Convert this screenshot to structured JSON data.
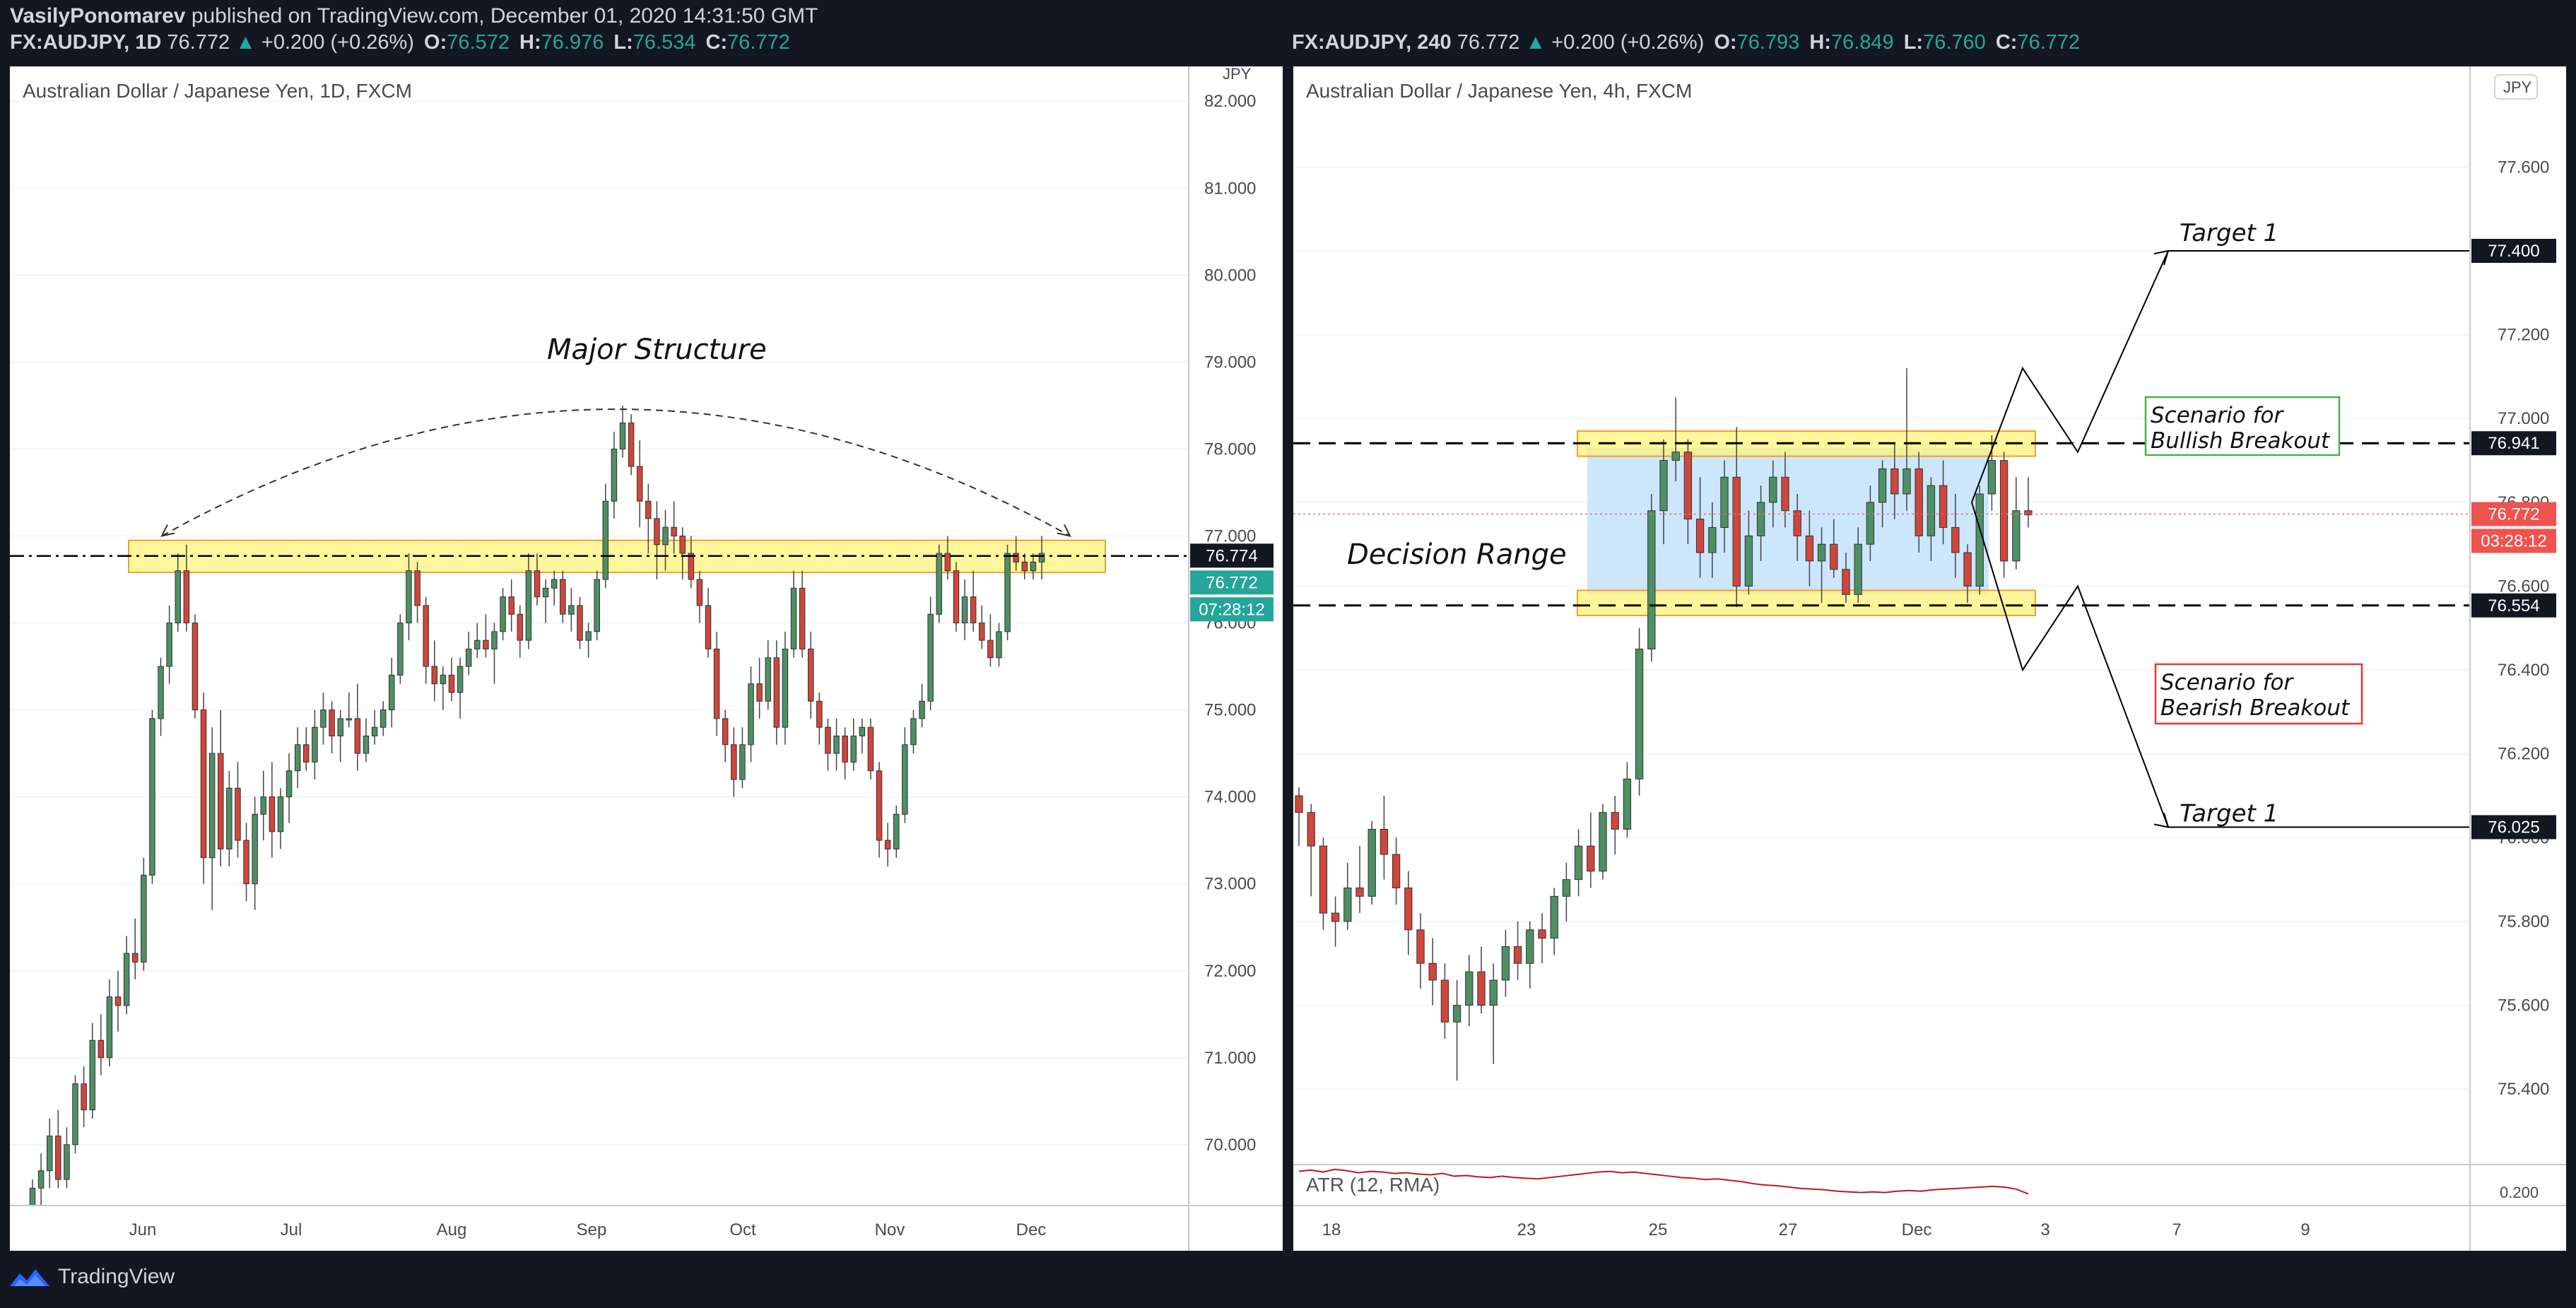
{
  "header": {
    "author": "VasilyPonomarev",
    "published_text": "published on TradingView.com, December 01, 2020 14:31:50 GMT"
  },
  "left_legend": {
    "symbol": "FX:AUDJPY, 1D",
    "price": "76.772",
    "arrow": "▲",
    "change": "+0.200 (+0.26%)",
    "o_label": "O:",
    "o": "76.572",
    "h_label": "H:",
    "h": "76.976",
    "l_label": "L:",
    "l": "76.534",
    "c_label": "C:",
    "c": "76.772"
  },
  "right_legend": {
    "symbol": "FX:AUDJPY, 240",
    "price": "76.772",
    "arrow": "▲",
    "change": "+0.200 (+0.26%)",
    "o_label": "O:",
    "o": "76.793",
    "h_label": "H:",
    "h": "76.849",
    "l_label": "L:",
    "l": "76.760",
    "c_label": "C:",
    "c": "76.772"
  },
  "footer": {
    "brand": "TradingView"
  },
  "colors": {
    "bull": "#26a69a",
    "bull_fill": "#4e8f64",
    "bear": "#d0463c",
    "zone": "#fff27a",
    "zone_border": "#f0a030",
    "range": "#bbdefb"
  },
  "chart_data": [
    {
      "type": "candlestick",
      "title": "Australian Dollar / Japanese Yen, 1D, FXCM",
      "currency": "JPY",
      "ylim": [
        69.3,
        82.4
      ],
      "y_ticks": [
        "82.000",
        "81.000",
        "80.000",
        "79.000",
        "78.000",
        "77.000",
        "76.000",
        "75.000",
        "74.000",
        "73.000",
        "72.000",
        "71.000",
        "70.000"
      ],
      "x_ticks": [
        "Jun",
        "Jul",
        "Aug",
        "Sep",
        "Oct",
        "Nov",
        "Dec"
      ],
      "price_badges": [
        "76.774",
        "76.772",
        "07:28:12"
      ],
      "annotations": [
        "Major Structure"
      ],
      "structure_zone": [
        76.58,
        76.95
      ],
      "structure_line": 76.77,
      "ohlc": [
        [
          69.3,
          69.6,
          69.3,
          69.5
        ],
        [
          69.5,
          69.9,
          69.3,
          69.7
        ],
        [
          69.7,
          70.3,
          69.5,
          70.1
        ],
        [
          70.1,
          70.4,
          69.5,
          69.6
        ],
        [
          69.6,
          70.2,
          69.5,
          70.0
        ],
        [
          70.0,
          70.8,
          69.9,
          70.7
        ],
        [
          70.7,
          70.9,
          70.2,
          70.4
        ],
        [
          70.4,
          71.4,
          70.3,
          71.2
        ],
        [
          71.2,
          71.5,
          70.8,
          71.0
        ],
        [
          71.0,
          71.9,
          70.9,
          71.7
        ],
        [
          71.7,
          72.0,
          71.3,
          71.6
        ],
        [
          71.6,
          72.4,
          71.5,
          72.2
        ],
        [
          72.2,
          72.6,
          71.9,
          72.1
        ],
        [
          72.1,
          73.3,
          72.0,
          73.1
        ],
        [
          73.1,
          75.0,
          73.0,
          74.9
        ],
        [
          74.9,
          75.6,
          74.7,
          75.5
        ],
        [
          75.5,
          76.2,
          75.3,
          76.0
        ],
        [
          76.0,
          76.8,
          75.9,
          76.6
        ],
        [
          76.6,
          76.9,
          75.9,
          76.0
        ],
        [
          76.0,
          76.1,
          74.9,
          75.0
        ],
        [
          75.0,
          75.2,
          73.0,
          73.3
        ],
        [
          73.3,
          74.8,
          72.7,
          74.5
        ],
        [
          74.5,
          75.0,
          73.2,
          73.4
        ],
        [
          73.4,
          74.3,
          73.2,
          74.1
        ],
        [
          74.1,
          74.4,
          73.3,
          73.5
        ],
        [
          73.5,
          73.7,
          72.8,
          73.0
        ],
        [
          73.0,
          74.0,
          72.7,
          73.8
        ],
        [
          73.8,
          74.3,
          73.5,
          74.0
        ],
        [
          74.0,
          74.4,
          73.3,
          73.6
        ],
        [
          73.6,
          74.1,
          73.4,
          74.0
        ],
        [
          74.0,
          74.5,
          73.7,
          74.3
        ],
        [
          74.3,
          74.8,
          74.1,
          74.6
        ],
        [
          74.6,
          74.8,
          74.3,
          74.4
        ],
        [
          74.4,
          75.0,
          74.2,
          74.8
        ],
        [
          74.8,
          75.2,
          74.6,
          75.0
        ],
        [
          75.0,
          75.1,
          74.5,
          74.7
        ],
        [
          74.7,
          75.0,
          74.4,
          74.9
        ],
        [
          74.9,
          75.2,
          74.8,
          74.9
        ],
        [
          74.9,
          75.3,
          74.3,
          74.5
        ],
        [
          74.5,
          74.9,
          74.4,
          74.7
        ],
        [
          74.7,
          75.0,
          74.6,
          74.8
        ],
        [
          74.8,
          75.1,
          74.7,
          75.0
        ],
        [
          75.0,
          75.6,
          74.8,
          75.4
        ],
        [
          75.4,
          76.1,
          75.3,
          76.0
        ],
        [
          76.0,
          76.8,
          75.8,
          76.6
        ],
        [
          76.6,
          76.7,
          76.0,
          76.2
        ],
        [
          76.2,
          76.3,
          75.3,
          75.5
        ],
        [
          75.5,
          75.8,
          75.1,
          75.3
        ],
        [
          75.3,
          75.5,
          75.0,
          75.4
        ],
        [
          75.4,
          75.6,
          75.1,
          75.2
        ],
        [
          75.2,
          75.6,
          74.9,
          75.5
        ],
        [
          75.5,
          75.9,
          75.4,
          75.7
        ],
        [
          75.7,
          76.0,
          75.6,
          75.8
        ],
        [
          75.8,
          76.1,
          75.6,
          75.7
        ],
        [
          75.7,
          76.0,
          75.3,
          75.9
        ],
        [
          75.9,
          76.4,
          75.8,
          76.3
        ],
        [
          76.3,
          76.5,
          75.9,
          76.1
        ],
        [
          76.1,
          76.2,
          75.6,
          75.8
        ],
        [
          75.8,
          76.8,
          75.7,
          76.6
        ],
        [
          76.6,
          76.8,
          76.2,
          76.3
        ],
        [
          76.3,
          76.5,
          76.0,
          76.4
        ],
        [
          76.4,
          76.6,
          76.2,
          76.5
        ],
        [
          76.5,
          76.6,
          76.0,
          76.1
        ],
        [
          76.1,
          76.4,
          75.9,
          76.2
        ],
        [
          76.2,
          76.3,
          75.7,
          75.8
        ],
        [
          75.8,
          76.0,
          75.6,
          75.9
        ],
        [
          75.9,
          76.6,
          75.8,
          76.5
        ],
        [
          76.5,
          77.6,
          76.4,
          77.4
        ],
        [
          77.4,
          78.2,
          77.2,
          78.0
        ],
        [
          78.0,
          78.5,
          77.9,
          78.3
        ],
        [
          78.3,
          78.4,
          77.7,
          77.8
        ],
        [
          77.8,
          78.1,
          77.1,
          77.4
        ],
        [
          77.4,
          77.6,
          76.8,
          77.2
        ],
        [
          77.2,
          77.4,
          76.5,
          76.9
        ],
        [
          76.9,
          77.3,
          76.6,
          77.1
        ],
        [
          77.1,
          77.4,
          76.8,
          77.0
        ],
        [
          77.0,
          77.1,
          76.5,
          76.8
        ],
        [
          76.8,
          77.0,
          76.4,
          76.5
        ],
        [
          76.5,
          76.6,
          76.0,
          76.2
        ],
        [
          76.2,
          76.4,
          75.6,
          75.7
        ],
        [
          75.7,
          75.9,
          74.7,
          74.9
        ],
        [
          74.9,
          75.0,
          74.4,
          74.6
        ],
        [
          74.6,
          74.8,
          74.0,
          74.2
        ],
        [
          74.2,
          74.8,
          74.1,
          74.6
        ],
        [
          74.6,
          75.5,
          74.4,
          75.3
        ],
        [
          75.3,
          75.6,
          74.9,
          75.1
        ],
        [
          75.1,
          75.8,
          75.0,
          75.6
        ],
        [
          75.6,
          75.8,
          74.6,
          74.8
        ],
        [
          74.8,
          75.9,
          74.6,
          75.7
        ],
        [
          75.7,
          76.6,
          75.6,
          76.4
        ],
        [
          76.4,
          76.6,
          75.6,
          75.7
        ],
        [
          75.7,
          75.9,
          74.9,
          75.1
        ],
        [
          75.1,
          75.2,
          74.6,
          74.8
        ],
        [
          74.8,
          74.9,
          74.3,
          74.5
        ],
        [
          74.5,
          74.9,
          74.3,
          74.7
        ],
        [
          74.7,
          74.8,
          74.2,
          74.4
        ],
        [
          74.4,
          74.9,
          74.3,
          74.7
        ],
        [
          74.7,
          74.9,
          74.5,
          74.8
        ],
        [
          74.8,
          74.9,
          74.2,
          74.3
        ],
        [
          74.3,
          74.4,
          73.3,
          73.5
        ],
        [
          73.5,
          73.7,
          73.2,
          73.4
        ],
        [
          73.4,
          73.9,
          73.3,
          73.8
        ],
        [
          73.8,
          74.8,
          73.7,
          74.6
        ],
        [
          74.6,
          75.0,
          74.5,
          74.9
        ],
        [
          74.9,
          75.3,
          74.8,
          75.1
        ],
        [
          75.1,
          76.3,
          75.0,
          76.1
        ],
        [
          76.1,
          76.9,
          76.0,
          76.8
        ],
        [
          76.8,
          77.0,
          76.5,
          76.6
        ],
        [
          76.6,
          76.7,
          75.9,
          76.0
        ],
        [
          76.0,
          76.5,
          75.8,
          76.3
        ],
        [
          76.3,
          76.6,
          75.9,
          76.0
        ],
        [
          76.0,
          76.2,
          75.7,
          75.8
        ],
        [
          75.8,
          76.1,
          75.5,
          75.6
        ],
        [
          75.6,
          76.0,
          75.5,
          75.9
        ],
        [
          75.9,
          76.9,
          75.8,
          76.8
        ],
        [
          76.8,
          77.0,
          76.6,
          76.7
        ],
        [
          76.7,
          76.8,
          76.5,
          76.6
        ],
        [
          76.6,
          76.8,
          76.5,
          76.7
        ],
        [
          76.7,
          77.0,
          76.5,
          76.8
        ]
      ]
    },
    {
      "type": "candlestick",
      "title": "Australian Dollar / Japanese Yen, 4h, FXCM",
      "currency": "JPY",
      "ylim": [
        75.22,
        77.84
      ],
      "y_ticks": [
        "77.600",
        "77.400",
        "77.200",
        "77.000",
        "76.800",
        "76.600",
        "76.400",
        "76.200",
        "76.000",
        "75.800",
        "75.600",
        "75.400"
      ],
      "x_ticks": [
        "18",
        "23",
        "25",
        "27",
        "Dec",
        "3",
        "7",
        "9"
      ],
      "price_badges": [
        "77.400",
        "76.941",
        "76.772",
        "03:28:12",
        "76.554",
        "76.025"
      ],
      "annotations": [
        "Decision Range",
        "Target 1",
        "Scenario for",
        "Bullish Breakout",
        "Scenario for",
        "Bearish Breakout",
        "Target 1"
      ],
      "indicator": {
        "name": "ATR (12, RMA)",
        "tick": "0.200"
      },
      "bull_zone": [
        76.91,
        76.97
      ],
      "bear_zone": [
        76.53,
        76.59
      ],
      "range_box": [
        76.58,
        76.93
      ],
      "levels": {
        "upper": 76.941,
        "lower": 76.554,
        "target_up": 77.4,
        "target_down": 76.025,
        "last": 76.772
      },
      "ohlc": [
        [
          76.1,
          76.12,
          75.98,
          76.06
        ],
        [
          76.06,
          76.08,
          75.86,
          75.98
        ],
        [
          75.98,
          76.0,
          75.78,
          75.82
        ],
        [
          75.82,
          75.86,
          75.74,
          75.8
        ],
        [
          75.8,
          75.94,
          75.78,
          75.88
        ],
        [
          75.88,
          75.98,
          75.82,
          75.86
        ],
        [
          75.86,
          76.04,
          75.84,
          76.02
        ],
        [
          76.02,
          76.1,
          75.9,
          75.96
        ],
        [
          75.96,
          76.0,
          75.84,
          75.88
        ],
        [
          75.88,
          75.92,
          75.72,
          75.78
        ],
        [
          75.78,
          75.82,
          75.64,
          75.7
        ],
        [
          75.7,
          75.76,
          75.6,
          75.66
        ],
        [
          75.66,
          75.7,
          75.52,
          75.56
        ],
        [
          75.56,
          75.66,
          75.42,
          75.6
        ],
        [
          75.6,
          75.72,
          75.55,
          75.68
        ],
        [
          75.68,
          75.74,
          75.58,
          75.6
        ],
        [
          75.6,
          75.7,
          75.46,
          75.66
        ],
        [
          75.66,
          75.78,
          75.62,
          75.74
        ],
        [
          75.74,
          75.8,
          75.66,
          75.7
        ],
        [
          75.7,
          75.8,
          75.64,
          75.78
        ],
        [
          75.78,
          75.82,
          75.7,
          75.76
        ],
        [
          75.76,
          75.88,
          75.72,
          75.86
        ],
        [
          75.86,
          75.94,
          75.8,
          75.9
        ],
        [
          75.9,
          76.02,
          75.86,
          75.98
        ],
        [
          75.98,
          76.06,
          75.88,
          75.92
        ],
        [
          75.92,
          76.08,
          75.9,
          76.06
        ],
        [
          76.06,
          76.1,
          75.96,
          76.02
        ],
        [
          76.02,
          76.18,
          76.0,
          76.14
        ],
        [
          76.14,
          76.5,
          76.1,
          76.45
        ],
        [
          76.45,
          76.82,
          76.42,
          76.78
        ],
        [
          76.78,
          76.95,
          76.7,
          76.9
        ],
        [
          76.9,
          77.05,
          76.85,
          76.92
        ],
        [
          76.92,
          76.95,
          76.7,
          76.76
        ],
        [
          76.76,
          76.86,
          76.62,
          76.68
        ],
        [
          76.68,
          76.8,
          76.62,
          76.74
        ],
        [
          76.74,
          76.9,
          76.68,
          76.86
        ],
        [
          76.86,
          76.98,
          76.55,
          76.6
        ],
        [
          76.6,
          76.78,
          76.58,
          76.72
        ],
        [
          76.72,
          76.84,
          76.66,
          76.8
        ],
        [
          76.8,
          76.9,
          76.74,
          76.86
        ],
        [
          76.86,
          76.92,
          76.74,
          76.78
        ],
        [
          76.78,
          76.82,
          76.66,
          76.72
        ],
        [
          76.72,
          76.78,
          76.6,
          76.66
        ],
        [
          76.66,
          76.74,
          76.56,
          76.7
        ],
        [
          76.7,
          76.76,
          76.62,
          76.64
        ],
        [
          76.64,
          76.68,
          76.56,
          76.58
        ],
        [
          76.58,
          76.74,
          76.56,
          76.7
        ],
        [
          76.7,
          76.84,
          76.66,
          76.8
        ],
        [
          76.8,
          76.9,
          76.74,
          76.88
        ],
        [
          76.88,
          76.94,
          76.76,
          76.82
        ],
        [
          76.82,
          77.12,
          76.78,
          76.88
        ],
        [
          76.88,
          76.92,
          76.68,
          76.72
        ],
        [
          76.72,
          76.86,
          76.66,
          76.84
        ],
        [
          76.84,
          76.9,
          76.7,
          76.74
        ],
        [
          76.74,
          76.82,
          76.62,
          76.68
        ],
        [
          76.68,
          76.7,
          76.56,
          76.6
        ],
        [
          76.6,
          76.84,
          76.58,
          76.82
        ],
        [
          76.82,
          76.96,
          76.78,
          76.9
        ],
        [
          76.9,
          76.92,
          76.62,
          76.66
        ],
        [
          76.66,
          76.86,
          76.64,
          76.78
        ],
        [
          76.78,
          76.86,
          76.74,
          76.77
        ]
      ],
      "atr": [
        0.245,
        0.247,
        0.244,
        0.248,
        0.246,
        0.243,
        0.245,
        0.244,
        0.242,
        0.243,
        0.241,
        0.24,
        0.242,
        0.238,
        0.239,
        0.237,
        0.236,
        0.238,
        0.236,
        0.235,
        0.234,
        0.236,
        0.238,
        0.24,
        0.242,
        0.244,
        0.245,
        0.243,
        0.244,
        0.242,
        0.24,
        0.238,
        0.236,
        0.235,
        0.233,
        0.234,
        0.232,
        0.23,
        0.227,
        0.225,
        0.224,
        0.222,
        0.22,
        0.219,
        0.218,
        0.216,
        0.215,
        0.214,
        0.215,
        0.214,
        0.216,
        0.217,
        0.216,
        0.218,
        0.219,
        0.22,
        0.221,
        0.222,
        0.223,
        0.222,
        0.219,
        0.212
      ]
    }
  ]
}
